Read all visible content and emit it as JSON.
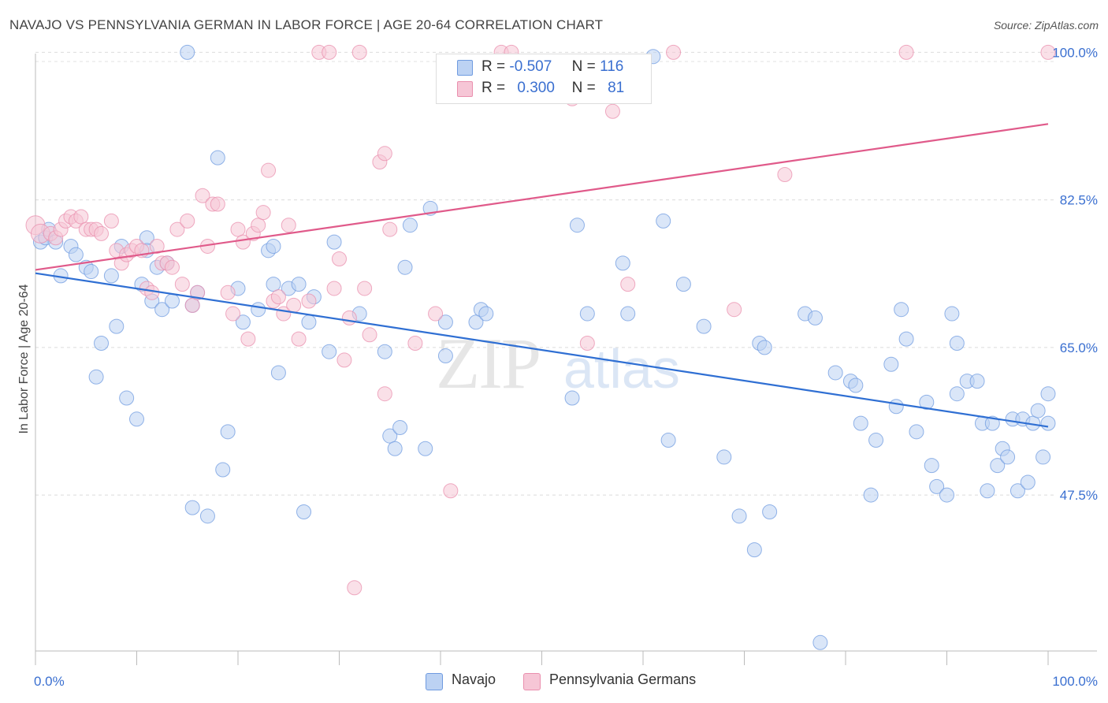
{
  "title": "NAVAJO VS PENNSYLVANIA GERMAN IN LABOR FORCE | AGE 20-64 CORRELATION CHART",
  "source": "Source: ZipAtlas.com",
  "watermark": "ZIPatlas",
  "legend": {
    "rows": [
      {
        "r_label": "R =",
        "r_value": "-0.507",
        "n_label": "N =",
        "n_value": "116"
      },
      {
        "r_label": "R =",
        "r_value": "0.300",
        "n_label": "N =",
        "n_value": "81"
      }
    ]
  },
  "bottom_legend": {
    "navajo": "Navajo",
    "pagerman": "Pennsylvania Germans"
  },
  "chart_data": {
    "type": "scatter",
    "title": "NAVAJO VS PENNSYLVANIA GERMAN IN LABOR FORCE | AGE 20-64 CORRELATION CHART",
    "xlabel": "",
    "ylabel": "In Labor Force | Age 20-64",
    "xlim": [
      0,
      100
    ],
    "ylim": [
      29,
      102
    ],
    "x_tick_labels": [
      "0.0%",
      "100.0%"
    ],
    "y_ticks": [
      47.5,
      65.0,
      82.5,
      100.0
    ],
    "y_tick_labels": [
      "47.5%",
      "65.0%",
      "82.5%",
      "100.0%"
    ],
    "grid": true,
    "colors": {
      "navajo": "#6f9be0",
      "navajo_fill": "#bcd2f3",
      "navajo_line": "#2f6fd3",
      "pagerman": "#ea8fae",
      "pagerman_fill": "#f6c6d6",
      "pagerman_line": "#e05a8a",
      "axis_label": "#3a6fd0"
    },
    "series": [
      {
        "name": "Navajo",
        "trend": {
          "x": [
            0,
            100
          ],
          "y": [
            73.8,
            55.6
          ]
        },
        "points": [
          [
            0.5,
            77.5
          ],
          [
            1,
            78
          ],
          [
            1.3,
            79
          ],
          [
            2,
            77.5
          ],
          [
            2.5,
            73.5
          ],
          [
            3.5,
            77
          ],
          [
            4,
            76
          ],
          [
            5,
            74.5
          ],
          [
            5.5,
            74
          ],
          [
            6,
            61.5
          ],
          [
            6.5,
            65.5
          ],
          [
            7.5,
            73.5
          ],
          [
            8,
            67.5
          ],
          [
            8.5,
            77
          ],
          [
            9,
            59
          ],
          [
            10,
            56.5
          ],
          [
            10.5,
            72.5
          ],
          [
            11,
            78
          ],
          [
            11,
            76.5
          ],
          [
            11.5,
            70.5
          ],
          [
            12,
            74.5
          ],
          [
            12.5,
            69.5
          ],
          [
            13,
            75
          ],
          [
            13.5,
            70.5
          ],
          [
            15,
            100
          ],
          [
            15.5,
            46
          ],
          [
            15.5,
            70
          ],
          [
            16,
            71.5
          ],
          [
            17,
            45
          ],
          [
            18,
            87.5
          ],
          [
            18.5,
            50.5
          ],
          [
            19,
            55
          ],
          [
            20,
            72
          ],
          [
            20.5,
            68
          ],
          [
            22,
            69.5
          ],
          [
            23,
            76.5
          ],
          [
            23.5,
            77
          ],
          [
            23.5,
            72.5
          ],
          [
            24,
            62
          ],
          [
            25,
            72
          ],
          [
            26,
            72.5
          ],
          [
            26.5,
            45.5
          ],
          [
            27,
            68
          ],
          [
            27.5,
            71
          ],
          [
            29,
            64.5
          ],
          [
            29.5,
            77.5
          ],
          [
            32,
            69
          ],
          [
            34.5,
            64.5
          ],
          [
            35,
            54.5
          ],
          [
            35.5,
            53
          ],
          [
            36,
            55.5
          ],
          [
            36.5,
            74.5
          ],
          [
            37,
            79.5
          ],
          [
            38.5,
            53
          ],
          [
            39,
            81.5
          ],
          [
            40.5,
            64
          ],
          [
            40.5,
            68
          ],
          [
            43.5,
            68
          ],
          [
            44,
            69.5
          ],
          [
            44.5,
            69
          ],
          [
            53,
            59
          ],
          [
            53.5,
            79.5
          ],
          [
            54.5,
            69
          ],
          [
            58,
            75
          ],
          [
            58.5,
            69
          ],
          [
            61,
            99.5
          ],
          [
            62,
            80
          ],
          [
            62.5,
            54
          ],
          [
            64,
            72.5
          ],
          [
            66,
            67.5
          ],
          [
            68,
            52
          ],
          [
            69.5,
            45
          ],
          [
            71,
            41
          ],
          [
            71.5,
            65.5
          ],
          [
            72,
            65
          ],
          [
            72.5,
            45.5
          ],
          [
            76,
            69
          ],
          [
            77,
            68.5
          ],
          [
            77.5,
            30
          ],
          [
            79,
            62
          ],
          [
            80.5,
            61
          ],
          [
            81,
            60.5
          ],
          [
            81.5,
            56
          ],
          [
            82.5,
            47.5
          ],
          [
            83,
            54
          ],
          [
            84.5,
            63
          ],
          [
            85,
            58
          ],
          [
            85.5,
            69.5
          ],
          [
            86,
            66
          ],
          [
            87,
            55
          ],
          [
            88,
            58.5
          ],
          [
            88.5,
            51
          ],
          [
            89,
            48.5
          ],
          [
            90,
            47.5
          ],
          [
            90.5,
            69
          ],
          [
            91,
            59.5
          ],
          [
            91,
            65.5
          ],
          [
            92,
            61
          ],
          [
            93,
            61
          ],
          [
            93.5,
            56
          ],
          [
            94,
            48
          ],
          [
            94.5,
            56
          ],
          [
            95,
            51
          ],
          [
            95.5,
            53
          ],
          [
            96,
            52
          ],
          [
            96.5,
            56.5
          ],
          [
            97,
            48
          ],
          [
            97.5,
            56.5
          ],
          [
            98,
            49
          ],
          [
            98.5,
            56
          ],
          [
            99,
            57.5
          ],
          [
            99.5,
            52
          ],
          [
            100,
            56
          ],
          [
            100,
            59.5
          ]
        ]
      },
      {
        "name": "Pennsylvania Germans",
        "trend": {
          "x": [
            0,
            100
          ],
          "y": [
            74.2,
            91.5
          ]
        },
        "points": [
          [
            0,
            79.5
          ],
          [
            0.5,
            78.5
          ],
          [
            1.5,
            78.5
          ],
          [
            2,
            78
          ],
          [
            2.5,
            79
          ],
          [
            3,
            80
          ],
          [
            3.5,
            80.5
          ],
          [
            4,
            80
          ],
          [
            4.5,
            80.5
          ],
          [
            5,
            79
          ],
          [
            5.5,
            79
          ],
          [
            6,
            79
          ],
          [
            6.5,
            78.5
          ],
          [
            7.5,
            80
          ],
          [
            8,
            76.5
          ],
          [
            8.5,
            75
          ],
          [
            9,
            76
          ],
          [
            9.5,
            76.5
          ],
          [
            10,
            77
          ],
          [
            10.5,
            76.5
          ],
          [
            11,
            72
          ],
          [
            11.5,
            71.5
          ],
          [
            12,
            77
          ],
          [
            12.5,
            75
          ],
          [
            13,
            75
          ],
          [
            13.5,
            74.5
          ],
          [
            14,
            79
          ],
          [
            14.5,
            72.5
          ],
          [
            15,
            80
          ],
          [
            15.5,
            70
          ],
          [
            16,
            71.5
          ],
          [
            16.5,
            83
          ],
          [
            17,
            77
          ],
          [
            17.5,
            82
          ],
          [
            18,
            82
          ],
          [
            19,
            71.5
          ],
          [
            19.5,
            69
          ],
          [
            20,
            79
          ],
          [
            20.5,
            77.5
          ],
          [
            21,
            66
          ],
          [
            21.5,
            78.5
          ],
          [
            22,
            79.5
          ],
          [
            22.5,
            81
          ],
          [
            23,
            86
          ],
          [
            23.5,
            70.5
          ],
          [
            24,
            71
          ],
          [
            24.5,
            69
          ],
          [
            25,
            79.5
          ],
          [
            25.5,
            70
          ],
          [
            26,
            66
          ],
          [
            27,
            70.5
          ],
          [
            28,
            100
          ],
          [
            29,
            100
          ],
          [
            29.5,
            72
          ],
          [
            30,
            75.5
          ],
          [
            30.5,
            63.5
          ],
          [
            31,
            68.5
          ],
          [
            32,
            100
          ],
          [
            32.5,
            72
          ],
          [
            33,
            66.5
          ],
          [
            34,
            87
          ],
          [
            34.5,
            88
          ],
          [
            34.5,
            59.5
          ],
          [
            35,
            79
          ],
          [
            37.5,
            65.5
          ],
          [
            39.5,
            69
          ],
          [
            41,
            48
          ],
          [
            46,
            100
          ],
          [
            47,
            100
          ],
          [
            53,
            94.5
          ],
          [
            54.5,
            65.5
          ],
          [
            57,
            93
          ],
          [
            58.5,
            72.5
          ],
          [
            63,
            100
          ],
          [
            69,
            69.5
          ],
          [
            74,
            85.5
          ],
          [
            86,
            100
          ],
          [
            100,
            100
          ],
          [
            31.5,
            36.5
          ]
        ]
      }
    ]
  }
}
